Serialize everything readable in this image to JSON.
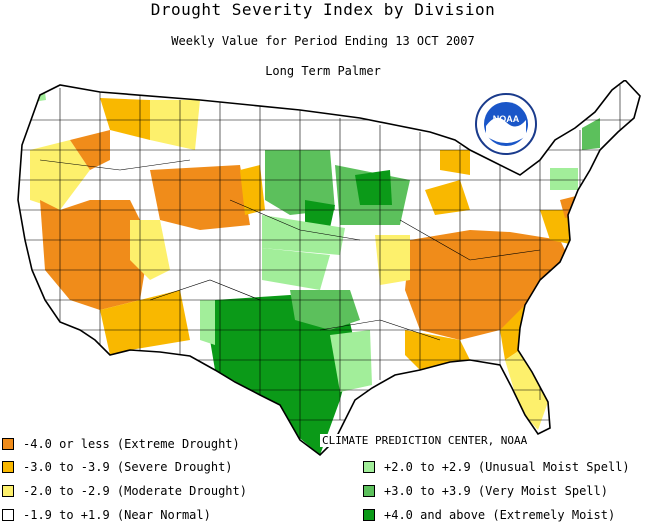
{
  "header": {
    "title": "Drought Severity Index by Division",
    "subtitle": "Weekly Value for Period Ending 13 OCT 2007",
    "index_name": "Long Term Palmer"
  },
  "logo": {
    "text": "NOAA",
    "icon": "noaa-logo"
  },
  "credit": "CLIMATE PREDICTION CENTER, NOAA",
  "legend": [
    {
      "label": "-4.0 or less (Extreme Drought)",
      "color": "#f08c1a"
    },
    {
      "label": "-3.0 to -3.9 (Severe Drought)",
      "color": "#f9b800"
    },
    {
      "label": "-2.0 to -2.9 (Moderate Drought)",
      "color": "#fdf06c"
    },
    {
      "label": "-1.9 to +1.9 (Near Normal)",
      "color": "#ffffff"
    },
    {
      "label": "+2.0 to +2.9 (Unusual Moist Spell)",
      "color": "#a2ee9a"
    },
    {
      "label": "+3.0 to +3.9 (Very Moist Spell)",
      "color": "#5cc05c"
    },
    {
      "label": "+4.0 and above (Extremely Moist)",
      "color": "#0b9a18"
    }
  ]
}
